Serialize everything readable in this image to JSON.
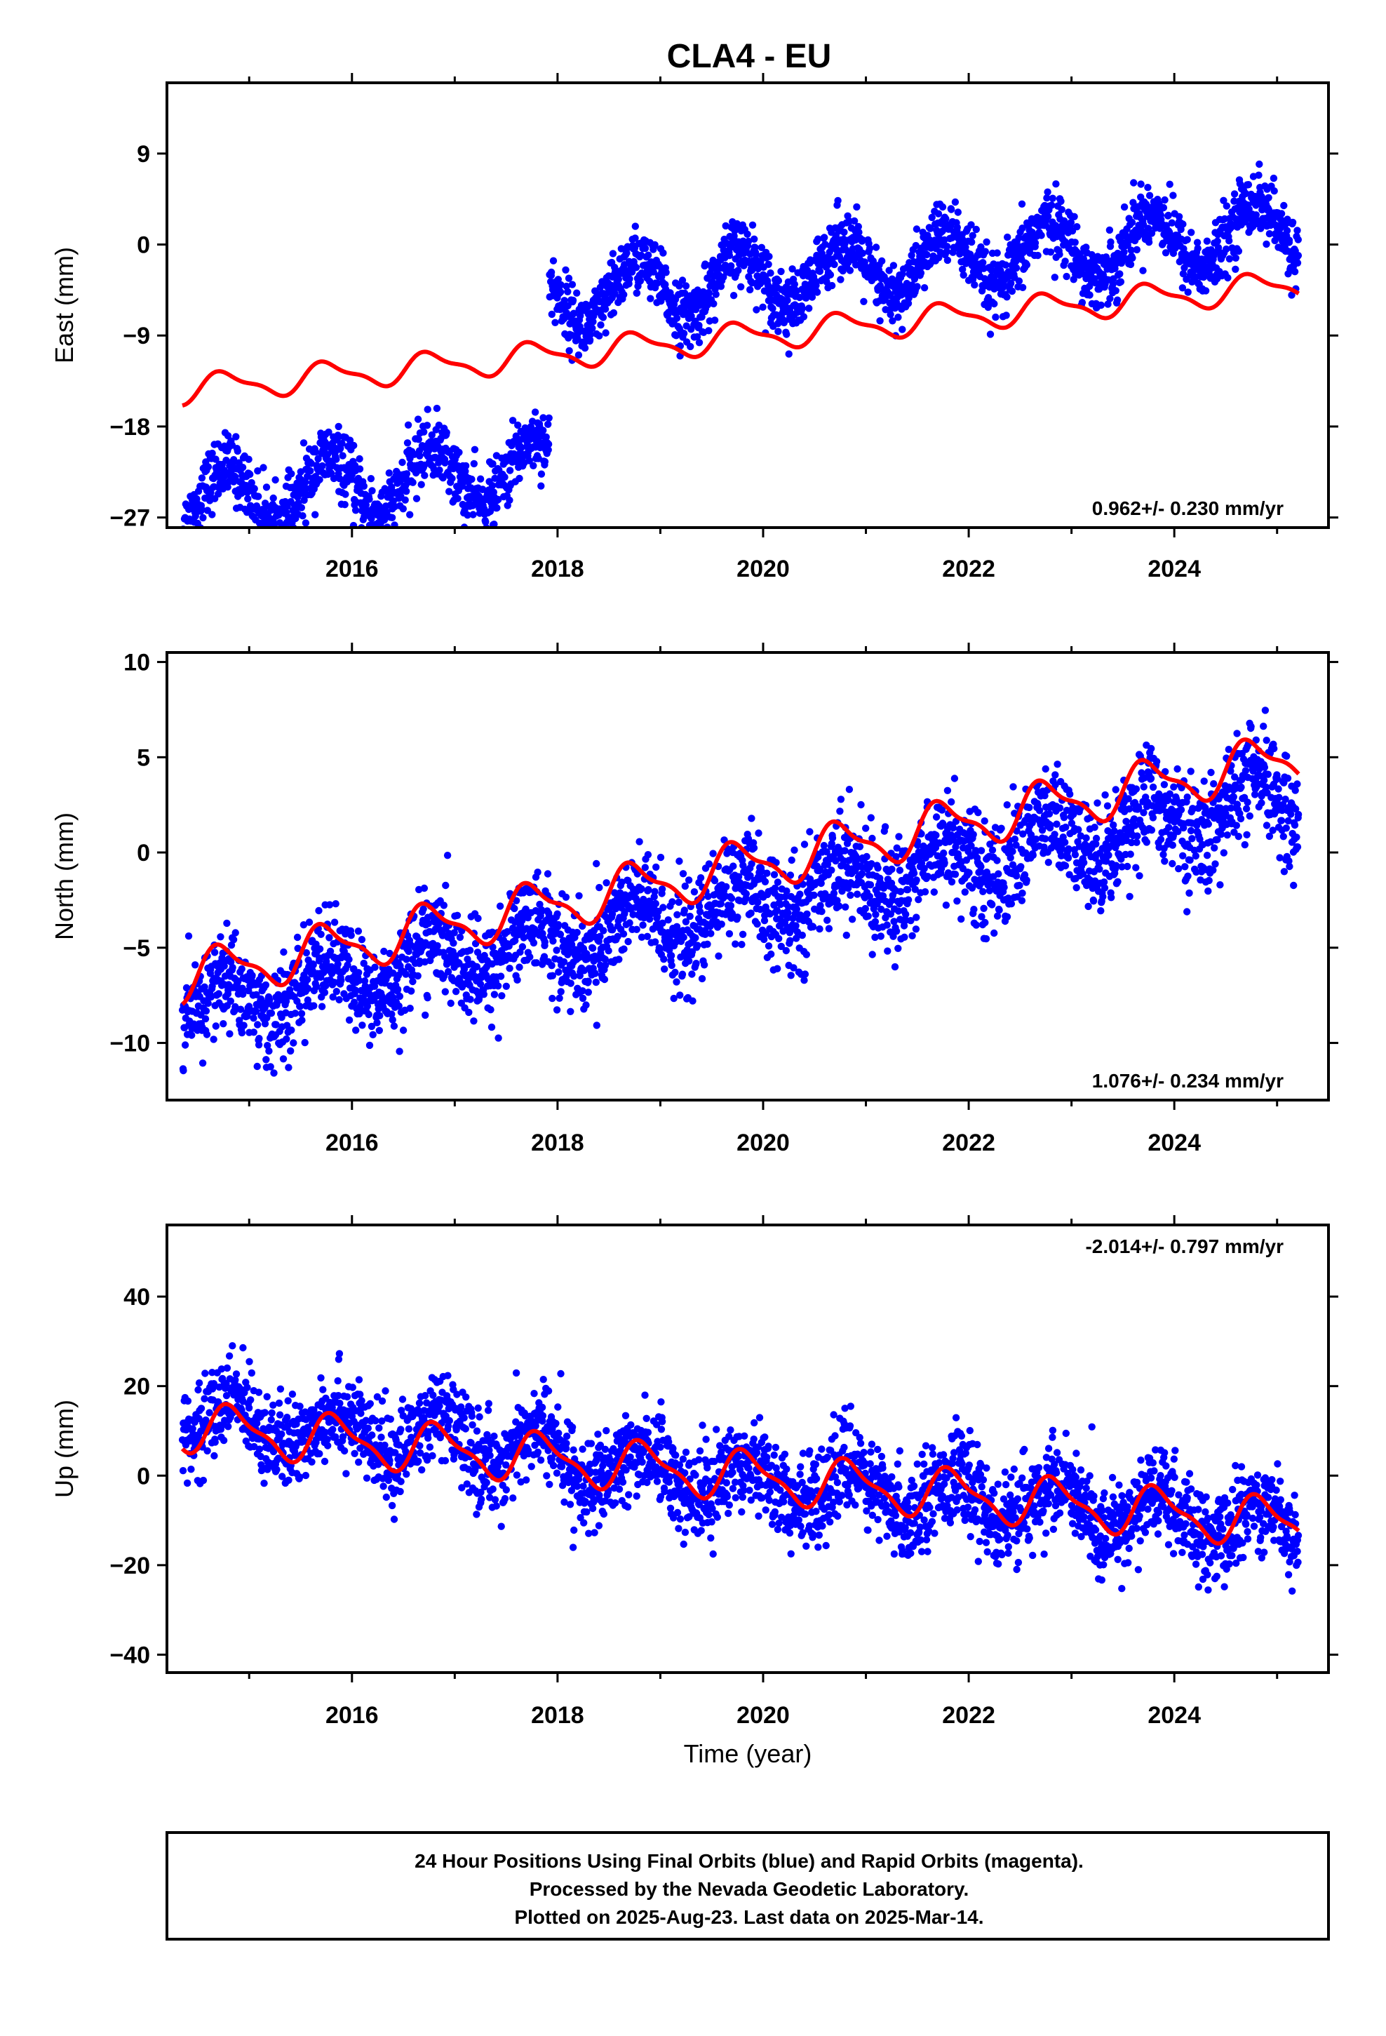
{
  "figure": {
    "title": "CLA4 - EU",
    "footer": {
      "line1": "24 Hour Positions Using Final Orbits (blue) and Rapid Orbits (magenta).",
      "line2": "Processed by the Nevada Geodetic Laboratory.",
      "line3": "Plotted on 2025-Aug-23. Last data on 2025-Mar-14."
    }
  },
  "colors": {
    "data": "#0000ff",
    "model": "#ff0000",
    "axis": "#000000",
    "background": "#ffffff"
  },
  "chart_data": [
    {
      "type": "scatter",
      "title": "CLA4 - EU",
      "ylabel": "East (mm)",
      "xlabel": "",
      "xlim": [
        2014.2,
        2025.5
      ],
      "ylim": [
        -28,
        16
      ],
      "xticks": [
        2016,
        2018,
        2020,
        2022,
        2024
      ],
      "yticks": [
        -27,
        -18,
        -9,
        0,
        9
      ],
      "rate_label": "0.962+/- 0.230 mm/yr",
      "rate_position": "bottom-right",
      "series": [
        {
          "kind": "observations",
          "segments": [
            {
              "start": 2014.35,
              "end": 2017.92,
              "offset": -25.4,
              "trend": 0.962,
              "amp": 3.0,
              "phase": 0.52,
              "noise": 1.6,
              "count": 900
            },
            {
              "start": 2017.92,
              "end": 2025.21,
              "offset": -5.4,
              "trend": 0.962,
              "amp": 3.0,
              "phase": 0.52,
              "noise": 1.6,
              "count": 1900
            }
          ]
        },
        {
          "kind": "model",
          "offset": -14.4,
          "trend": 0.962,
          "amp": 1.3,
          "phase": 0.52,
          "start": 2014.35,
          "end": 2025.21
        }
      ]
    },
    {
      "type": "scatter",
      "title": "",
      "ylabel": "North (mm)",
      "xlabel": "",
      "xlim": [
        2014.2,
        2025.5
      ],
      "ylim": [
        -13,
        10.5
      ],
      "xticks": [
        2016,
        2018,
        2020,
        2022,
        2024
      ],
      "yticks": [
        -10,
        -5,
        0,
        5,
        10
      ],
      "rate_label": "1.076+/- 0.234 mm/yr",
      "rate_position": "bottom-right",
      "series": [
        {
          "kind": "observations",
          "segments": [
            {
              "start": 2014.35,
              "end": 2017.92,
              "offset": -8.4,
              "trend": 1.076,
              "amp": 1.3,
              "phase": 0.5,
              "noise": 1.3,
              "count": 900
            },
            {
              "start": 2017.92,
              "end": 2025.21,
              "offset": -4.8,
              "trend": 1.076,
              "amp": 1.3,
              "phase": 0.5,
              "noise": 1.4,
              "count": 1900
            }
          ]
        },
        {
          "kind": "model",
          "offset": -6.6,
          "trend": 1.076,
          "amp": 1.2,
          "phase": 0.5,
          "start": 2014.35,
          "end": 2025.21
        }
      ]
    },
    {
      "type": "scatter",
      "title": "",
      "ylabel": "Up (mm)",
      "xlabel": "Time (year)",
      "xlim": [
        2014.2,
        2025.5
      ],
      "ylim": [
        -44,
        56
      ],
      "xticks": [
        2016,
        2018,
        2020,
        2022,
        2024
      ],
      "yticks": [
        -40,
        -20,
        0,
        20,
        40
      ],
      "rate_label": "-2.014+/- 0.797 mm/yr",
      "rate_position": "top-right",
      "series": [
        {
          "kind": "observations",
          "segments": [
            {
              "start": 2014.35,
              "end": 2017.92,
              "offset": 13.0,
              "trend": -2.014,
              "amp": 5.0,
              "phase": 0.6,
              "noise": 5.0,
              "count": 900
            },
            {
              "start": 2017.92,
              "end": 2025.21,
              "offset": 3.0,
              "trend": -2.014,
              "amp": 5.0,
              "phase": 0.6,
              "noise": 5.0,
              "count": 1900
            }
          ]
        },
        {
          "kind": "model",
          "offset": 11.0,
          "trend": -2.014,
          "amp": 5.0,
          "phase": 0.6,
          "start": 2014.35,
          "end": 2025.21
        }
      ]
    }
  ]
}
